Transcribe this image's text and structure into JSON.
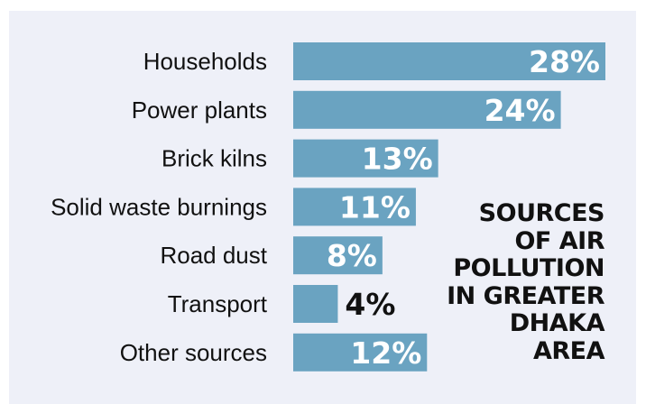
{
  "chart_data": {
    "type": "bar",
    "orientation": "horizontal",
    "title_lines": [
      "SOURCES",
      "OF AIR",
      "POLLUTION",
      "IN GREATER",
      "DHAKA",
      "AREA"
    ],
    "categories": [
      "Households",
      "Power plants",
      "Brick kilns",
      "Solid waste burnings",
      "Road dust",
      "Transport",
      "Other sources"
    ],
    "values": [
      28,
      24,
      13,
      11,
      8,
      4,
      12
    ],
    "value_labels": [
      "28%",
      "24%",
      "13%",
      "11%",
      "8%",
      "4%",
      "12%"
    ],
    "unit": "%",
    "xlim": [
      0,
      28
    ],
    "grid": false,
    "legend": "none",
    "colors": {
      "bar": "#6aa3c1",
      "panel": "#eef0f8",
      "label_on_bar": "#ffffff",
      "label_outside": "#111111"
    }
  }
}
